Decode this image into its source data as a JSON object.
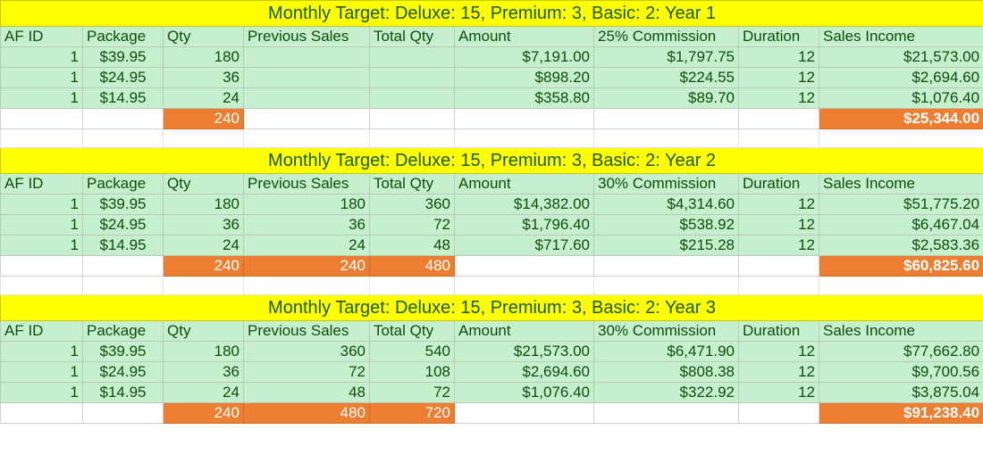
{
  "columns": [
    "AF ID",
    "Package",
    "Qty",
    "Previous Sales",
    "Total Qty",
    "Amount",
    "",
    "Duration",
    "Sales Income"
  ],
  "blocks": [
    {
      "title": "Monthly Target: Deluxe: 15, Premium: 3, Basic: 2: Year 1",
      "commission_header": "25% Commission",
      "rows": [
        {
          "af_id": "1",
          "package": "$39.95",
          "qty": "180",
          "prev": "",
          "total_qty": "",
          "amount": "$7,191.00",
          "commission": "$1,797.75",
          "duration": "12",
          "income": "$21,573.00"
        },
        {
          "af_id": "1",
          "package": "$24.95",
          "qty": "36",
          "prev": "",
          "total_qty": "",
          "amount": "$898.20",
          "commission": "$224.55",
          "duration": "12",
          "income": "$2,694.60"
        },
        {
          "af_id": "1",
          "package": "$14.95",
          "qty": "24",
          "prev": "",
          "total_qty": "",
          "amount": "$358.80",
          "commission": "$89.70",
          "duration": "12",
          "income": "$1,076.40"
        }
      ],
      "totals": {
        "qty": "240",
        "prev": "",
        "total_qty": "",
        "income": "$25,344.00"
      }
    },
    {
      "title": "Monthly Target: Deluxe: 15, Premium: 3, Basic: 2: Year 2",
      "commission_header": "30% Commission",
      "rows": [
        {
          "af_id": "1",
          "package": "$39.95",
          "qty": "180",
          "prev": "180",
          "total_qty": "360",
          "amount": "$14,382.00",
          "commission": "$4,314.60",
          "duration": "12",
          "income": "$51,775.20"
        },
        {
          "af_id": "1",
          "package": "$24.95",
          "qty": "36",
          "prev": "36",
          "total_qty": "72",
          "amount": "$1,796.40",
          "commission": "$538.92",
          "duration": "12",
          "income": "$6,467.04"
        },
        {
          "af_id": "1",
          "package": "$14.95",
          "qty": "24",
          "prev": "24",
          "total_qty": "48",
          "amount": "$717.60",
          "commission": "$215.28",
          "duration": "12",
          "income": "$2,583.36"
        }
      ],
      "totals": {
        "qty": "240",
        "prev": "240",
        "total_qty": "480",
        "income": "$60,825.60"
      }
    },
    {
      "title": "Monthly Target: Deluxe: 15, Premium: 3, Basic: 2: Year 3",
      "commission_header": "30% Commission",
      "rows": [
        {
          "af_id": "1",
          "package": "$39.95",
          "qty": "180",
          "prev": "360",
          "total_qty": "540",
          "amount": "$21,573.00",
          "commission": "$6,471.90",
          "duration": "12",
          "income": "$77,662.80"
        },
        {
          "af_id": "1",
          "package": "$24.95",
          "qty": "36",
          "prev": "72",
          "total_qty": "108",
          "amount": "$2,694.60",
          "commission": "$808.38",
          "duration": "12",
          "income": "$9,700.56"
        },
        {
          "af_id": "1",
          "package": "$14.95",
          "qty": "24",
          "prev": "48",
          "total_qty": "72",
          "amount": "$1,076.40",
          "commission": "$322.92",
          "duration": "12",
          "income": "$3,875.04"
        }
      ],
      "totals": {
        "qty": "240",
        "prev": "480",
        "total_qty": "720",
        "income": "$91,238.40"
      }
    }
  ],
  "colors": {
    "title_fill": "#ffff00",
    "data_fill": "#c6efce",
    "data_text": "#0b4f0b",
    "total_fill": "#ed7d31"
  }
}
